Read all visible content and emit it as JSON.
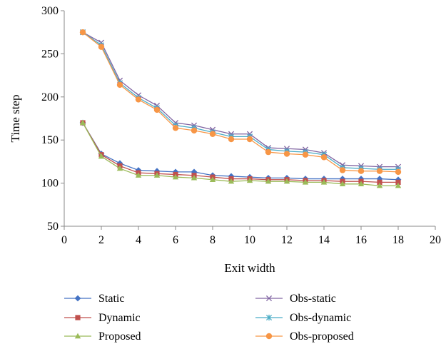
{
  "chart_data": {
    "type": "line",
    "title": "",
    "xlabel": "Exit width",
    "ylabel": "Time step",
    "xlim": [
      0,
      20
    ],
    "ylim": [
      50,
      300
    ],
    "xticks": [
      0,
      2,
      4,
      6,
      8,
      10,
      12,
      14,
      16,
      18,
      20
    ],
    "yticks": [
      50,
      100,
      150,
      200,
      250,
      300
    ],
    "grid": false,
    "legend_position": "bottom",
    "x": [
      1,
      2,
      3,
      4,
      5,
      6,
      7,
      8,
      9,
      10,
      11,
      12,
      13,
      14,
      15,
      16,
      17,
      18
    ],
    "series": [
      {
        "name": "Static",
        "color": "#4472C4",
        "marker": "diamond",
        "values": [
          170,
          134,
          123,
          115,
          114,
          113,
          113,
          109,
          108,
          107,
          106,
          106,
          105,
          105,
          105,
          105,
          105,
          104
        ]
      },
      {
        "name": "Dynamic",
        "color": "#C0504D",
        "marker": "square",
        "values": [
          170,
          133,
          120,
          112,
          111,
          110,
          109,
          107,
          105,
          105,
          104,
          104,
          103,
          103,
          102,
          102,
          101,
          101
        ]
      },
      {
        "name": "Proposed",
        "color": "#9BBB59",
        "marker": "triangle",
        "values": [
          170,
          131,
          117,
          109,
          109,
          107,
          106,
          104,
          102,
          103,
          102,
          102,
          101,
          101,
          99,
          99,
          97,
          97
        ]
      },
      {
        "name": "Obs-static",
        "color": "#8064A2",
        "marker": "x",
        "values": [
          275,
          263,
          219,
          202,
          190,
          170,
          167,
          162,
          157,
          157,
          141,
          140,
          139,
          135,
          121,
          120,
          119,
          119
        ]
      },
      {
        "name": "Obs-dynamic",
        "color": "#4BACC6",
        "marker": "star",
        "values": [
          275,
          260,
          216,
          199,
          187,
          167,
          164,
          159,
          154,
          154,
          139,
          137,
          136,
          133,
          118,
          117,
          116,
          116
        ]
      },
      {
        "name": "Obs-proposed",
        "color": "#F79646",
        "marker": "circle",
        "values": [
          275,
          258,
          214,
          197,
          185,
          164,
          161,
          157,
          151,
          151,
          136,
          134,
          133,
          130,
          115,
          114,
          114,
          113
        ]
      }
    ]
  }
}
